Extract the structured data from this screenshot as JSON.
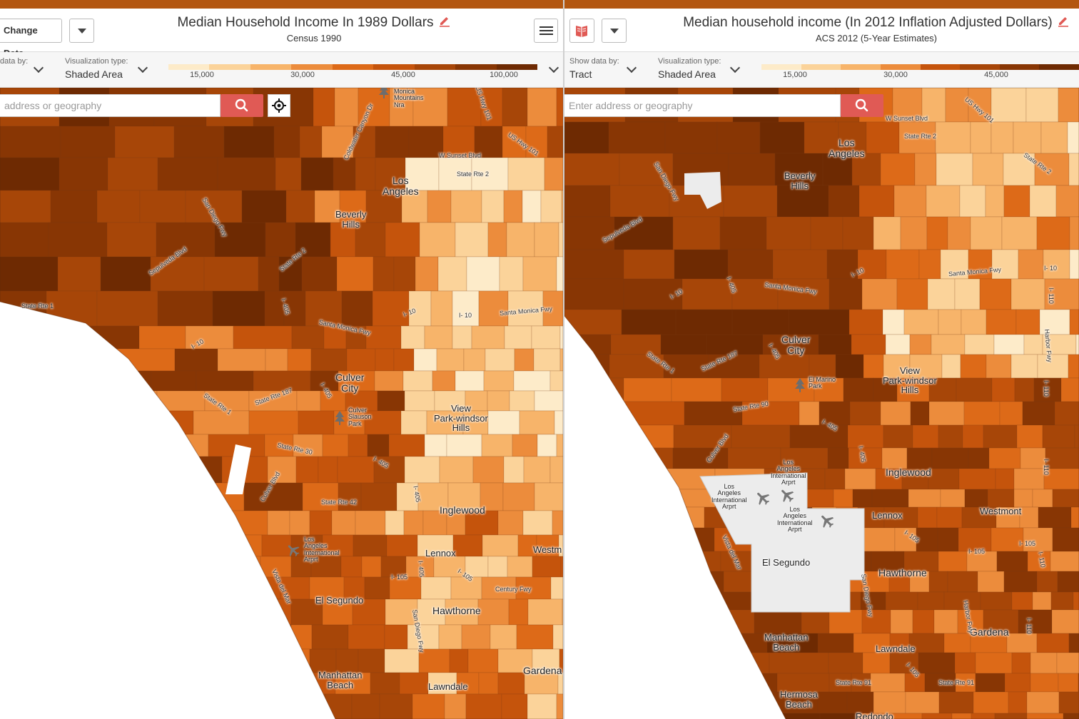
{
  "colors": {
    "scale": [
      "#fdebc9",
      "#fbd39a",
      "#f7b46a",
      "#ec8c3c",
      "#dd6a18",
      "#c5540c",
      "#a74608",
      "#883604",
      "#6e2a02"
    ],
    "search_button": "#e05a55",
    "airport": "#ececec",
    "ocean": "#ffffff"
  },
  "left": {
    "change_data_label": "Change Data",
    "title": "Median Household Income In 1989 Dollars",
    "subtitle": "Census 1990",
    "show_data_label": "data by:",
    "viz_type_label": "Visualization type:",
    "viz_type_value": "Shaded Area",
    "legend_ticks": [
      "15,000",
      "30,000",
      "45,000",
      "100,000"
    ],
    "search_placeholder": "address or geography",
    "icons": {
      "edit": "pencil-icon",
      "menu": "hamburger-menu-icon",
      "search": "search-icon",
      "locate": "crosshair-icon"
    },
    "labels": {
      "la": "Los\nAngeles",
      "beverly": "Beverly\nHills",
      "culver": "Culver\nCity",
      "view": "View\nPark-windsor\nHills",
      "inglewood": "Inglewood",
      "lennox": "Lennox",
      "westm": "Westm",
      "elsegundo": "El Segundo",
      "hawthorne": "Hawthorne",
      "manhattan": "Manhattan\nBeach",
      "lawndale": "Lawndale",
      "gardena": "Gardena",
      "airport": "Los\nAngeles\nInternational\nArprt",
      "culver_slauson": "Culver\nSlauson\nPark",
      "sm_mountains": "Monica\nMountains\nNra",
      "sunset": "W Sunset Blvd",
      "rte2": "State Rte 2",
      "hwy101": "US Hwy 101",
      "hwy101b": "US Hwy 101",
      "i10a": "I- 10",
      "i10b": "I- 10",
      "smfwy": "Santa Monica Fwy",
      "smfwy2": "Santa Monica Fwy",
      "i405": "I- 405",
      "i405b": "I- 405",
      "i405c": "I- 405",
      "i405d": "I- 405",
      "rte187": "State Rte 187",
      "rte1": "State Rte 1",
      "rte1b": "State Rte 1",
      "rte2b": "State Rte 2",
      "rte30": "State Rte 30",
      "rte42": "State Rte 42",
      "i105": "I- 105",
      "i105b": "I- 105",
      "century": "Century Fwy",
      "sandiego": "San Diego Fwy",
      "vistadelmar": "Vista del Mar",
      "culverblvd": "Culver Blvd",
      "sepulveda": "Sepulveda Blvd",
      "sdfwy": "San Diego Fwy",
      "coldwater": "Coldwater Canyon Dr",
      "i405e": "I- 405"
    }
  },
  "right": {
    "title": "Median household income (In 2012 Inflation Adjusted Dollars)",
    "subtitle": "ACS 2012 (5-Year Estimates)",
    "show_data_label": "Show data by:",
    "show_data_value": "Tract",
    "viz_type_label": "Visualization type:",
    "viz_type_value": "Shaded Area",
    "legend_ticks": [
      "15,000",
      "30,000",
      "45,000"
    ],
    "search_placeholder": "Enter address or geography",
    "icons": {
      "edit": "pencil-icon",
      "book": "book-icon",
      "search": "search-icon"
    },
    "labels": {
      "la": "Los\nAngeles",
      "beverly": "Beverly\nHills",
      "culver": "Culver\nCity",
      "view": "View\nPark-windsor\nHills",
      "inglewood": "Inglewood",
      "lennox": "Lennox",
      "westmont": "Westmont",
      "elsegundo": "El Segundo",
      "hawthorne": "Hawthorne",
      "gardena": "Gardena",
      "manhattan": "Manhattan\nBeach",
      "lawndale": "Lawndale",
      "hermosa": "Hermosa\nBeach",
      "redondo": "Redondo",
      "elmarino": "El Marino\nPark",
      "airport1": "Los\nAngeles\nInternational\nArprt",
      "airport2": "Los\nAngeles\nInternational\nArprt",
      "airport3": "Los\nAngeles\nInternational\nArprt",
      "sunset": "W Sunset Blvd",
      "rte2": "State Rte 2",
      "rte2b": "State Rte 2",
      "hwy101": "US Hwy 101",
      "i10a": "I- 10",
      "i10b": "I- 10",
      "i10c": "I- 10",
      "smfwy": "Santa Monica Fwy",
      "smfwy2": "Santa Monica Fwy",
      "i405": "I- 405",
      "i405b": "I- 405",
      "i405c": "I- 405",
      "rte187": "State Rte 187",
      "rte1": "State Rte 1",
      "rte1b": "State Rte 1",
      "rte90": "State Rte 90",
      "harbor": "Harbor Fwy",
      "i110": "I- 110",
      "i110b": "I- 110",
      "i110c": "I- 110",
      "i110d": "I- 110",
      "i105": "I- 105",
      "i105b": "I- 105",
      "i105c": "I- 105",
      "i105d": "I- 105",
      "vistadelmar": "Vista del Mar",
      "rte91": "State Rte 91",
      "rte91b": "State Rte 91",
      "sepulveda": "Sepulveda Blvd",
      "sdfwy": "San Diego Fwy",
      "harborfwy": "Harbor Fwy",
      "i405d": "I- 405",
      "culverblvd": "Culver Blvd",
      "i110e": "I- 110"
    }
  }
}
